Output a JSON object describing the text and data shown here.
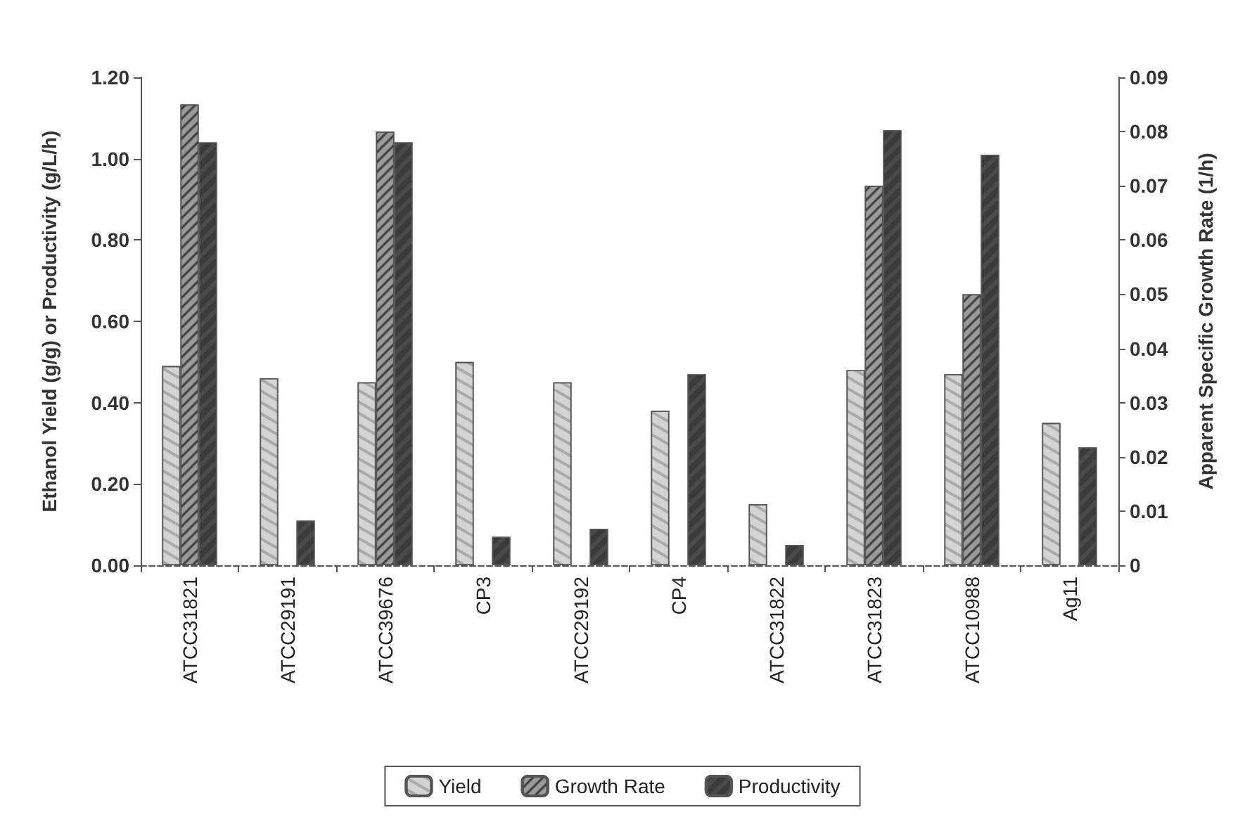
{
  "chart_data": {
    "type": "bar",
    "ylabel": "Ethanol Yield (g/g) or Productivity (g/L/h)",
    "y2label": "Apparent Specific Growth Rate (1/h)",
    "categories": [
      "ATCC31821",
      "ATCC29191",
      "ATCC39676",
      "CP3",
      "ATCC29192",
      "CP4",
      "ATCC31822",
      "ATCC31823",
      "ATCC10988",
      "Ag11"
    ],
    "series": [
      {
        "name": "Yield",
        "color": "#d4d4d4",
        "values": [
          0.49,
          0.46,
          0.45,
          0.5,
          0.45,
          0.38,
          0.15,
          0.48,
          0.47,
          0.35
        ]
      },
      {
        "name": "Growth Rate",
        "color": "#9a9a9a",
        "axis": "y2",
        "values": [
          0.085,
          null,
          0.08,
          null,
          null,
          null,
          null,
          0.07,
          0.05,
          null
        ]
      },
      {
        "name": "Productivity",
        "color": "#4a4a4a",
        "values": [
          1.04,
          0.11,
          1.04,
          0.07,
          0.09,
          0.47,
          0.05,
          1.07,
          1.01,
          0.29
        ]
      }
    ],
    "ylim": [
      0,
      1.2
    ],
    "yticks": [
      {
        "value": 0,
        "label": "0.00"
      },
      {
        "value": 0.2,
        "label": "0.20"
      },
      {
        "value": 0.4,
        "label": "0.40"
      },
      {
        "value": 0.6,
        "label": "0.60"
      },
      {
        "value": 0.8,
        "label": "0.80"
      },
      {
        "value": 1.0,
        "label": "1.00"
      },
      {
        "value": 1.2,
        "label": "1.20"
      }
    ],
    "y2lim": [
      0,
      0.09
    ],
    "y2ticks": [
      0,
      0.01,
      0.02,
      0.03,
      0.04,
      0.05,
      0.06,
      0.07,
      0.08,
      0.09
    ],
    "grid": false,
    "legend": "bottom"
  }
}
